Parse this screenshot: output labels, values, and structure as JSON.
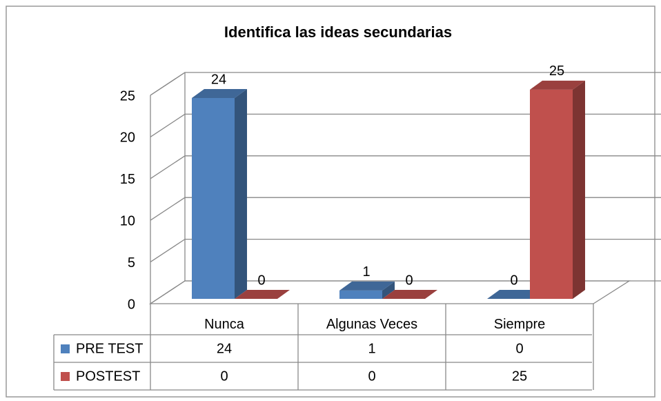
{
  "chart_data": {
    "type": "bar3d",
    "title": "Identifica las ideas  secundarias",
    "categories": [
      "Nunca",
      "Algunas Veces",
      "Siempre"
    ],
    "series": [
      {
        "name": "PRE TEST",
        "color": "#4f81bd",
        "values": [
          24,
          1,
          0
        ]
      },
      {
        "name": "POSTEST",
        "color": "#c0504d",
        "values": [
          0,
          0,
          25
        ]
      }
    ],
    "ylim": [
      0,
      25
    ],
    "yticks": [
      0,
      5,
      10,
      15,
      20,
      25
    ],
    "grid": true,
    "data_table": true
  }
}
